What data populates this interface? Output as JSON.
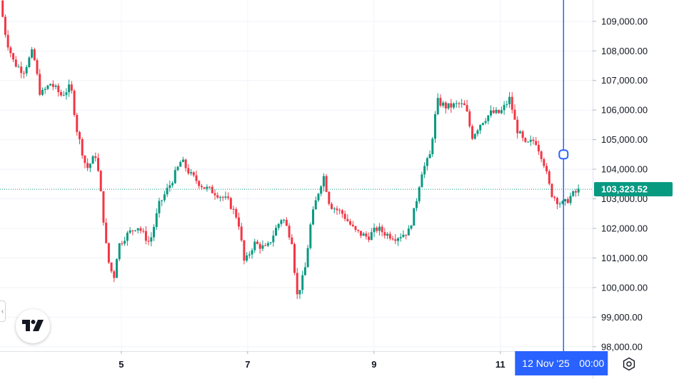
{
  "chart_data": {
    "type": "candlestick",
    "y_axis": {
      "ticks": [
        98000,
        99000,
        100000,
        101000,
        102000,
        103000,
        104000,
        105000,
        106000,
        107000,
        108000,
        109000
      ],
      "tick_labels": [
        "98,000.00",
        "99,000.00",
        "100,000.00",
        "101,000.00",
        "102,000.00",
        "103,000.00",
        "104,000.00",
        "105,000.00",
        "106,000.00",
        "107,000.00",
        "108,000.00",
        "109,000.00"
      ],
      "range": [
        97850,
        109720
      ]
    },
    "x_axis": {
      "tick_labels": [
        "5",
        "7",
        "9",
        "11"
      ],
      "tick_days": [
        5,
        7,
        9,
        11
      ],
      "range_days": [
        3.08,
        12.46
      ]
    },
    "last_price": 103323.52,
    "last_price_label": "103,323.52",
    "crosshair": {
      "day": 12.0,
      "date_label": "12 Nov '25",
      "time_label": "00:00",
      "price": 104500
    },
    "colors": {
      "up": "#089981",
      "down": "#f23645",
      "crosshair": "#2962ff",
      "price_line": "#089981"
    },
    "grid": true,
    "anchor_closes": [
      [
        3.08,
        109700
      ],
      [
        3.18,
        108400
      ],
      [
        3.3,
        107600
      ],
      [
        3.45,
        107300
      ],
      [
        3.6,
        108000
      ],
      [
        3.72,
        106500
      ],
      [
        3.88,
        106900
      ],
      [
        4.05,
        106500
      ],
      [
        4.2,
        106800
      ],
      [
        4.3,
        105300
      ],
      [
        4.45,
        104000
      ],
      [
        4.6,
        104500
      ],
      [
        4.68,
        103100
      ],
      [
        4.78,
        101000
      ],
      [
        4.88,
        100300
      ],
      [
        4.95,
        101400
      ],
      [
        5.05,
        101700
      ],
      [
        5.25,
        102100
      ],
      [
        5.45,
        101500
      ],
      [
        5.6,
        102800
      ],
      [
        5.8,
        103600
      ],
      [
        5.95,
        104300
      ],
      [
        6.1,
        103800
      ],
      [
        6.3,
        103400
      ],
      [
        6.5,
        103200
      ],
      [
        6.7,
        102900
      ],
      [
        6.85,
        102300
      ],
      [
        6.95,
        100800
      ],
      [
        7.1,
        101500
      ],
      [
        7.3,
        101300
      ],
      [
        7.45,
        102000
      ],
      [
        7.55,
        102400
      ],
      [
        7.7,
        101600
      ],
      [
        7.78,
        99700
      ],
      [
        7.9,
        100500
      ],
      [
        8.0,
        102200
      ],
      [
        8.1,
        103100
      ],
      [
        8.2,
        103800
      ],
      [
        8.3,
        102800
      ],
      [
        8.5,
        102500
      ],
      [
        8.7,
        101900
      ],
      [
        8.9,
        101700
      ],
      [
        9.05,
        102000
      ],
      [
        9.2,
        101800
      ],
      [
        9.35,
        101700
      ],
      [
        9.55,
        101900
      ],
      [
        9.65,
        102700
      ],
      [
        9.75,
        103900
      ],
      [
        9.88,
        104400
      ],
      [
        10.0,
        106300
      ],
      [
        10.15,
        106100
      ],
      [
        10.35,
        106200
      ],
      [
        10.45,
        106100
      ],
      [
        10.55,
        105100
      ],
      [
        10.7,
        105600
      ],
      [
        10.85,
        105900
      ],
      [
        11.0,
        105900
      ],
      [
        11.15,
        106400
      ],
      [
        11.25,
        105400
      ],
      [
        11.4,
        104800
      ],
      [
        11.55,
        105000
      ],
      [
        11.68,
        104300
      ],
      [
        11.8,
        103200
      ],
      [
        11.92,
        102900
      ],
      [
        12.0,
        102800
      ],
      [
        12.12,
        103100
      ],
      [
        12.27,
        103323.52
      ]
    ]
  }
}
